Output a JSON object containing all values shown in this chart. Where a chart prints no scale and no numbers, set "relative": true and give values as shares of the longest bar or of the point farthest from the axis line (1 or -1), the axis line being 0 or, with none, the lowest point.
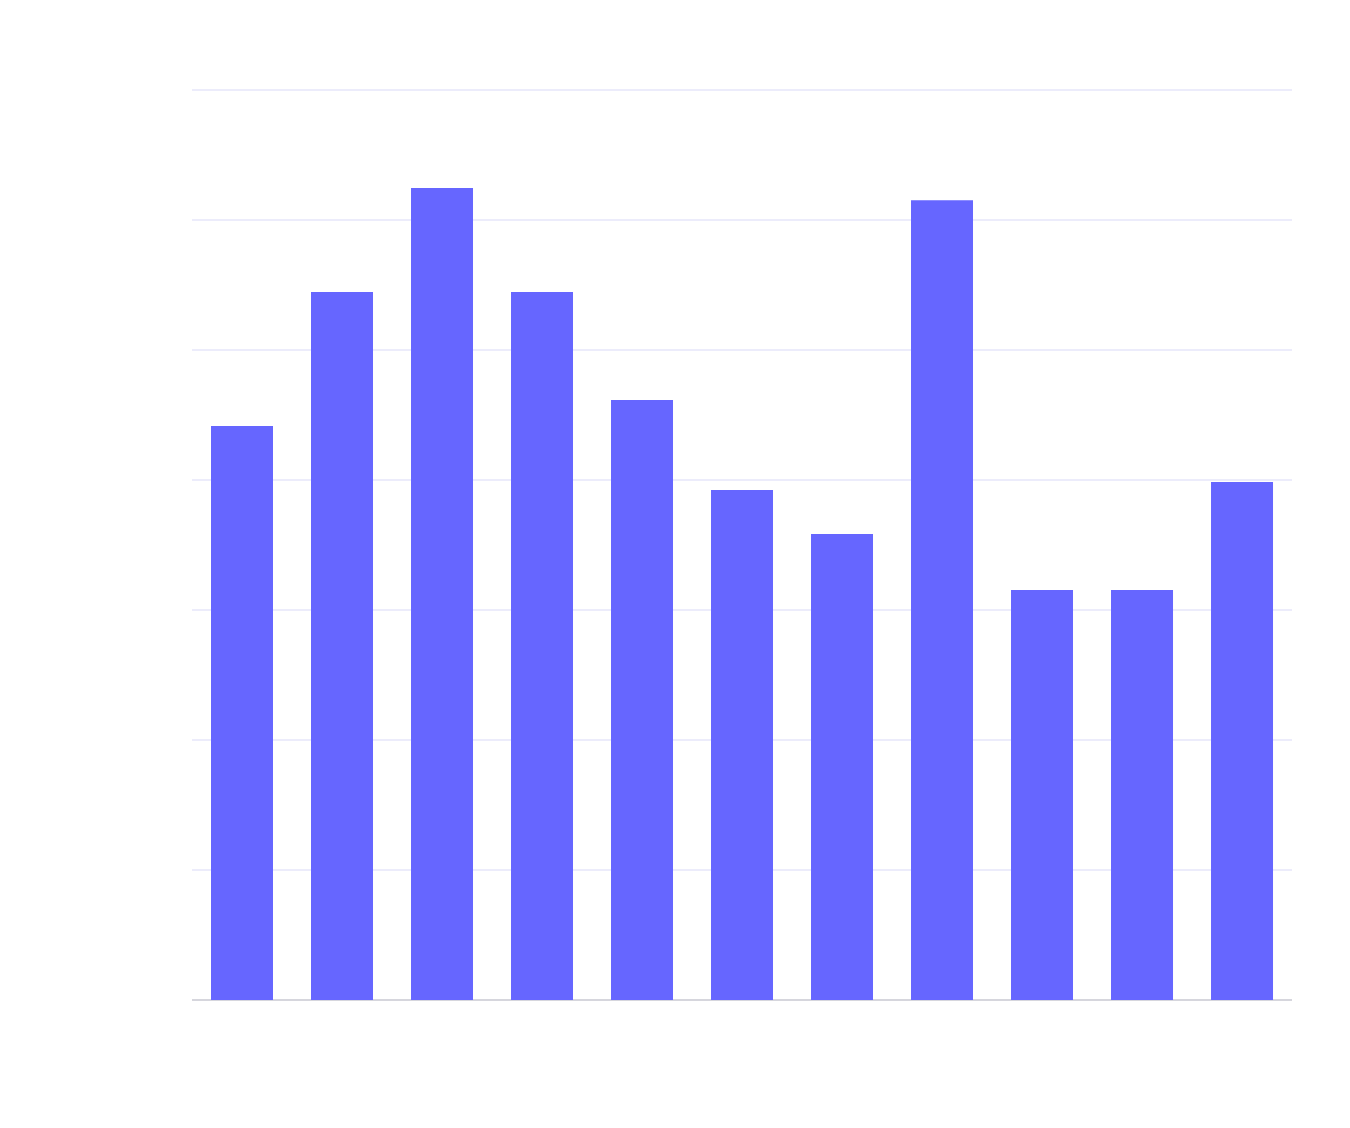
{
  "chart_data": {
    "type": "bar",
    "relative": true,
    "categories": [
      null,
      null,
      null,
      null,
      null,
      null,
      null,
      null,
      null,
      null,
      null
    ],
    "values": [
      0.707,
      0.872,
      1,
      0.872,
      0.739,
      0.628,
      0.574,
      0.985,
      0.505,
      0.505,
      0.638
    ],
    "color": "#6666ff",
    "grid": "y"
  }
}
